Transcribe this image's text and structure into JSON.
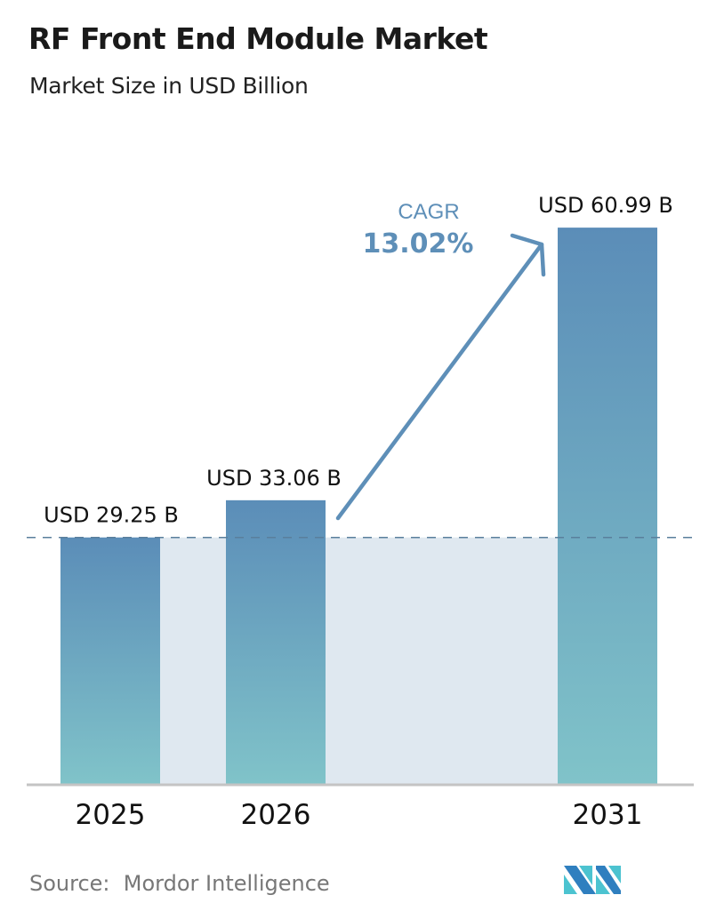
{
  "header": {
    "title": "RF Front End Module Market",
    "subtitle": "Market Size in USD Billion"
  },
  "chart_data": {
    "type": "bar",
    "title": "RF Front End Module Market",
    "subtitle": "Market Size in USD Billion",
    "categories": [
      "2025",
      "2026",
      "2031"
    ],
    "values": [
      29.25,
      33.06,
      60.99
    ],
    "data_labels": [
      "USD 29.25 B",
      "USD 33.06 B",
      "USD 60.99 B"
    ],
    "ylim": [
      4,
      61
    ],
    "grid": false,
    "annotation": {
      "label": "CAGR",
      "value": "13.02%"
    },
    "colors": {
      "bar_top": "#5b8db8",
      "bar_bottom": "#80c3c9",
      "band": "#dfe8f0",
      "arrow": "#5e8fb8",
      "dashed_line": "#5a7f9c"
    }
  },
  "footer": {
    "source": "Source:  Mordor Intelligence",
    "logo_text": "Mordor Intelligence"
  }
}
